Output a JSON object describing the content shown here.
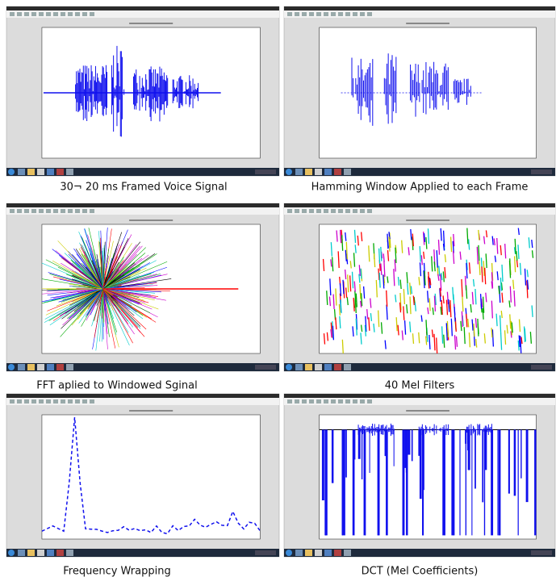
{
  "panels": [
    {
      "caption": "30¬ 20 ms Framed Voice Signal",
      "kind": "wave"
    },
    {
      "caption": "Hamming Window Applied to each Frame",
      "kind": "windowed"
    },
    {
      "caption": "FFT aplied to Windowed Sginal",
      "kind": "burst"
    },
    {
      "caption": "40 Mel Filters",
      "kind": "mel"
    },
    {
      "caption": "Frequency Wrapping",
      "kind": "peaks"
    },
    {
      "caption": "DCT (Mel Coefficients)",
      "kind": "dct"
    }
  ]
}
